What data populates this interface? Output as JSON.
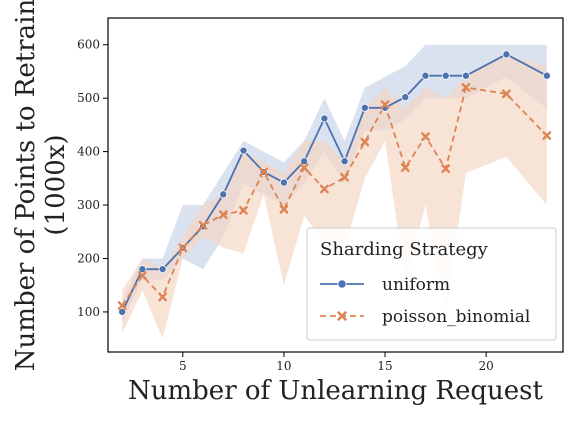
{
  "chart_data": {
    "type": "line",
    "title": "",
    "xlabel": "Number of Unlearning Request",
    "ylabel_line1": "Number of Points to Retrain",
    "ylabel_line2": "(1000x)",
    "xlim": [
      1.3,
      23.8
    ],
    "ylim": [
      25,
      650
    ],
    "x_ticks": [
      5,
      10,
      15,
      20
    ],
    "y_ticks": [
      100,
      200,
      300,
      400,
      500,
      600
    ],
    "grid": false,
    "legend": {
      "title": "Sharding Strategy",
      "placement": "lower-right"
    },
    "x": [
      2,
      3,
      4,
      5,
      6,
      7,
      8,
      9,
      10,
      11,
      12,
      13,
      14,
      15,
      16,
      17,
      18,
      19,
      21,
      23
    ],
    "series": [
      {
        "name": "uniform",
        "color": "#4c72b0",
        "band_color": "#c8d3e7",
        "marker": "circle",
        "dash": "solid",
        "values": [
          100,
          180,
          180,
          220,
          260,
          320,
          402,
          362,
          342,
          382,
          462,
          382,
          482,
          482,
          502,
          542,
          542,
          542,
          582,
          542
        ],
        "lower": [
          80,
          160,
          160,
          200,
          180,
          240,
          340,
          320,
          300,
          340,
          400,
          340,
          440,
          440,
          460,
          500,
          500,
          500,
          540,
          480
        ],
        "upper": [
          120,
          200,
          200,
          300,
          300,
          360,
          420,
          400,
          380,
          420,
          500,
          420,
          520,
          540,
          560,
          600,
          600,
          600,
          600,
          600
        ]
      },
      {
        "name": "poisson_binomial",
        "color": "#dd8452",
        "band_color": "#f5d4c1",
        "marker": "x",
        "dash": "dashed",
        "values": [
          112,
          168,
          128,
          220,
          262,
          282,
          290,
          362,
          292,
          370,
          330,
          352,
          418,
          488,
          370,
          428,
          368,
          520,
          508,
          430
        ],
        "lower": [
          60,
          140,
          50,
          200,
          240,
          220,
          210,
          320,
          150,
          280,
          230,
          220,
          350,
          420,
          160,
          300,
          100,
          360,
          390,
          300
        ],
        "upper": [
          140,
          200,
          180,
          240,
          300,
          320,
          400,
          380,
          360,
          420,
          420,
          380,
          480,
          520,
          480,
          520,
          500,
          540,
          580,
          560
        ]
      }
    ]
  }
}
